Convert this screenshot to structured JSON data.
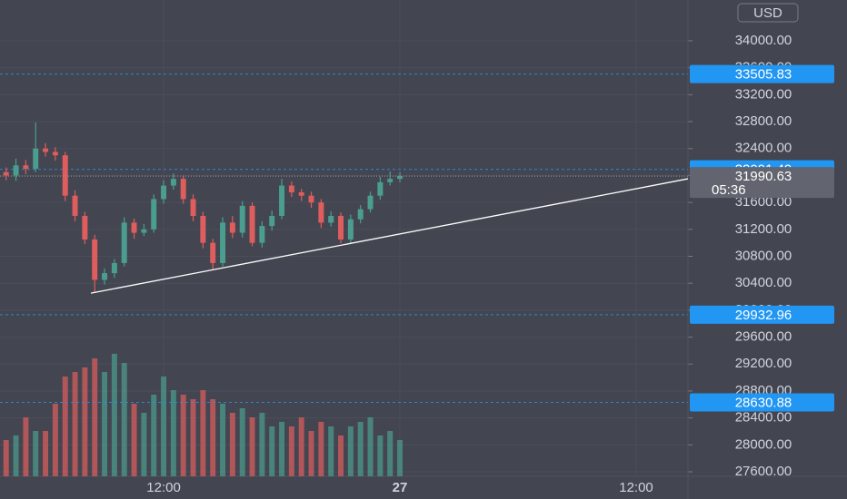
{
  "chart_data": {
    "type": "candlestick",
    "currency": "USD",
    "x": [
      4,
      4.5,
      5,
      5.5,
      6,
      6.5,
      7,
      7.5,
      8,
      8.5,
      9,
      9.5,
      10,
      10.5,
      11,
      11.5,
      12,
      12.5,
      13,
      13.5,
      14,
      14.5,
      15,
      15.5,
      16,
      16.5,
      17,
      17.5,
      18,
      18.5,
      19,
      19.5,
      20,
      20.5,
      21,
      21.5,
      22,
      22.5,
      23,
      23.5,
      24
    ],
    "open": [
      32050,
      32000,
      32150,
      32100,
      32400,
      32350,
      32300,
      31700,
      31400,
      31050,
      30450,
      30550,
      30700,
      31300,
      31150,
      31200,
      31650,
      31850,
      31950,
      31650,
      31400,
      31000,
      30700,
      31300,
      31150,
      31550,
      31000,
      31250,
      31400,
      31850,
      31750,
      31700,
      31600,
      31300,
      31400,
      31050,
      31350,
      31500,
      31700,
      31900,
      31950
    ],
    "high": [
      32120,
      32250,
      32230,
      32787,
      32480,
      32420,
      32350,
      31780,
      31460,
      31120,
      30620,
      30760,
      31380,
      31360,
      31280,
      31720,
      31930,
      32030,
      32000,
      31720,
      31460,
      31060,
      31380,
      31400,
      31620,
      31600,
      31320,
      31480,
      31950,
      31910,
      31800,
      31760,
      31650,
      31470,
      31450,
      31420,
      31560,
      31760,
      31980,
      32060,
      32050
    ],
    "low": [
      31930,
      31920,
      32020,
      32050,
      32280,
      32220,
      31620,
      31320,
      30980,
      30267,
      30380,
      30480,
      30650,
      31060,
      31100,
      31150,
      31580,
      31790,
      31580,
      31320,
      30920,
      30604,
      30650,
      31070,
      31080,
      30950,
      30930,
      31180,
      31350,
      31680,
      31620,
      31520,
      31220,
      31240,
      30995,
      31000,
      31290,
      31450,
      31640,
      31850,
      31900
    ],
    "close": [
      32000,
      32150,
      32100,
      32400,
      32350,
      32300,
      31700,
      31400,
      31050,
      30450,
      30550,
      30700,
      31300,
      31150,
      31200,
      31650,
      31850,
      31950,
      31650,
      31400,
      31000,
      30700,
      31300,
      31150,
      31550,
      31000,
      31250,
      31400,
      31850,
      31750,
      31700,
      31600,
      31300,
      31400,
      31050,
      31350,
      31500,
      31700,
      31900,
      31950,
      31990.63
    ],
    "volume": [
      40,
      45,
      65,
      50,
      50,
      80,
      110,
      115,
      120,
      130,
      115,
      135,
      125,
      80,
      70,
      90,
      110,
      95,
      90,
      85,
      95,
      85,
      80,
      70,
      75,
      65,
      70,
      55,
      60,
      55,
      65,
      50,
      60,
      55,
      45,
      55,
      60,
      65,
      45,
      50,
      40
    ],
    "countdown": "05:36",
    "xlim": [
      3.69,
      38.63
    ],
    "xticks": [
      {
        "value": 12,
        "label": "12:00"
      },
      {
        "value": 24,
        "label": "27"
      },
      {
        "value": 36,
        "label": "12:00"
      }
    ],
    "ylim": [
      27533,
      34606
    ],
    "yticks": [
      {
        "value": 27600,
        "label": "27600.00"
      },
      {
        "value": 28000,
        "label": "28000.00"
      },
      {
        "value": 28400,
        "label": "28400.00"
      },
      {
        "value": 28800,
        "label": "28800.00"
      },
      {
        "value": 29200,
        "label": "29200.00"
      },
      {
        "value": 29600,
        "label": "29600.00"
      },
      {
        "value": 30000,
        "label": "30000.00"
      },
      {
        "value": 30400,
        "label": "30400.00"
      },
      {
        "value": 30800,
        "label": "30800.00"
      },
      {
        "value": 31200,
        "label": "31200.00"
      },
      {
        "value": 31600,
        "label": "31600.00"
      },
      {
        "value": 32000,
        "label": "32000.00"
      },
      {
        "value": 32400,
        "label": "32400.00"
      },
      {
        "value": 32800,
        "label": "32800.00"
      },
      {
        "value": 33200,
        "label": "33200.00"
      },
      {
        "value": 33600,
        "label": "33600.00"
      },
      {
        "value": 34000,
        "label": "34000.00"
      }
    ],
    "price_lines": [
      33505.83,
      32091.49,
      29932.96,
      28630.88
    ],
    "price_line_color": "#2196f3",
    "trendline": {
      "x": [
        8.31,
        38.63
      ],
      "y": [
        30253,
        31951
      ]
    },
    "up_color": "#4b9e8f",
    "down_color": "#e05d5d",
    "grid": true
  }
}
